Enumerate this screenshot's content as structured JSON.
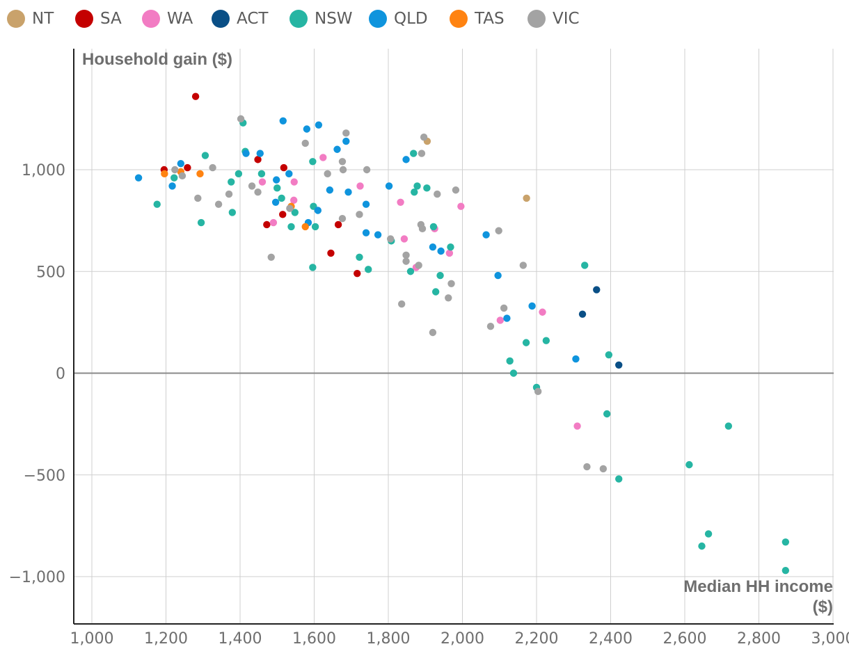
{
  "legend": [
    {
      "label": "NT",
      "color": "#c9a26b"
    },
    {
      "label": "SA",
      "color": "#c40000"
    },
    {
      "label": "WA",
      "color": "#f27cc3"
    },
    {
      "label": "ACT",
      "color": "#0a4f86"
    },
    {
      "label": "NSW",
      "color": "#26b5a3"
    },
    {
      "label": "QLD",
      "color": "#0f94dd"
    },
    {
      "label": "TAS",
      "color": "#ff8311"
    },
    {
      "label": "VIC",
      "color": "#a3a3a3"
    }
  ],
  "chart_data": {
    "type": "scatter",
    "ylabel": "Household gain ($)",
    "xlabel": "Median HH income",
    "xlabel_unit": "($)",
    "xlim": [
      950,
      3000
    ],
    "ylim": [
      -1230,
      1600
    ],
    "xticks": [
      1000,
      1200,
      1400,
      1600,
      1800,
      2000,
      2200,
      2400,
      2600,
      2800,
      3000
    ],
    "xtick_labels": [
      "1,000",
      "1,200",
      "1,400",
      "1,600",
      "1,800",
      "2,000",
      "2,200",
      "2,400",
      "2,600",
      "2,800",
      "3,000"
    ],
    "yticks": [
      1000,
      500,
      0,
      -500,
      -1000
    ],
    "ytick_labels": [
      "1,000",
      "500",
      "0",
      "−500",
      "−1,000"
    ],
    "grid": true,
    "legend_position": "top",
    "series": [
      {
        "name": "NT",
        "color": "#c9a26b",
        "x": [
          1905,
          2173
        ],
        "y": [
          1140,
          860
        ]
      },
      {
        "name": "SA",
        "color": "#c40000",
        "x": [
          1280,
          1195,
          1258,
          1448,
          1518,
          1472,
          1515,
          1665,
          1645,
          1716
        ],
        "y": [
          1360,
          1000,
          1010,
          1050,
          1010,
          730,
          780,
          730,
          590,
          490
        ]
      },
      {
        "name": "WA",
        "color": "#f27cc3",
        "x": [
          1624,
          1724,
          1460,
          1546,
          1490,
          1545,
          1833,
          1996,
          1925,
          1843,
          1875,
          1965,
          2102,
          2216,
          2310
        ],
        "y": [
          1060,
          920,
          940,
          940,
          740,
          850,
          840,
          820,
          710,
          660,
          520,
          590,
          260,
          300,
          -260
        ]
      },
      {
        "name": "ACT",
        "color": "#0a4f86",
        "x": [
          2362,
          2324,
          2422
        ],
        "y": [
          410,
          290,
          40
        ]
      },
      {
        "name": "NSW",
        "color": "#26b5a3",
        "x": [
          1176,
          1222,
          1295,
          1306,
          1376,
          1379,
          1396,
          1408,
          1414,
          1458,
          1500,
          1512,
          1538,
          1548,
          1596,
          1598,
          1603,
          1596,
          1722,
          1746,
          1808,
          1860,
          1870,
          1868,
          1878,
          1904,
          1922,
          1928,
          1940,
          1968,
          2128,
          2138,
          2172,
          2200,
          2226,
          2330,
          2390,
          2395,
          2422,
          2612,
          2646,
          2664,
          2718,
          2872,
          2872
        ],
        "y": [
          830,
          960,
          740,
          1070,
          940,
          790,
          980,
          1230,
          1090,
          980,
          910,
          860,
          720,
          790,
          1040,
          820,
          720,
          520,
          570,
          510,
          650,
          500,
          890,
          1080,
          920,
          910,
          720,
          400,
          480,
          620,
          60,
          0,
          150,
          -70,
          160,
          530,
          -200,
          90,
          -520,
          -450,
          -850,
          -790,
          -260,
          -830,
          -970
        ]
      },
      {
        "name": "QLD",
        "color": "#0f94dd",
        "x": [
          1126,
          1217,
          1240,
          1416,
          1454,
          1498,
          1496,
          1532,
          1580,
          1612,
          1610,
          1662,
          1686,
          1692,
          1642,
          1516,
          1584,
          1740,
          1740,
          1772,
          1802,
          1848,
          1920,
          1942,
          2064,
          2096,
          2120,
          2188,
          2306
        ],
        "y": [
          960,
          920,
          1030,
          1080,
          1080,
          950,
          840,
          980,
          1200,
          1220,
          800,
          1100,
          1140,
          890,
          900,
          1240,
          740,
          830,
          690,
          680,
          920,
          1050,
          620,
          600,
          680,
          480,
          270,
          330,
          70
        ]
      },
      {
        "name": "TAS",
        "color": "#ff8311",
        "x": [
          1196,
          1240,
          1292,
          1538,
          1576
        ],
        "y": [
          980,
          990,
          980,
          820,
          720
        ]
      },
      {
        "name": "VIC",
        "color": "#a3a3a3",
        "x": [
          1224,
          1244,
          1286,
          1326,
          1342,
          1370,
          1402,
          1432,
          1448,
          1484,
          1534,
          1576,
          1636,
          1676,
          1678,
          1686,
          1742,
          1722,
          1676,
          1836,
          1848,
          1882,
          1888,
          1892,
          1896,
          1932,
          1962,
          1970,
          1982,
          1920,
          1848,
          1806,
          1890,
          2076,
          2098,
          2112,
          2164,
          2204,
          2336,
          2380
        ],
        "y": [
          1000,
          970,
          860,
          1010,
          830,
          880,
          1250,
          920,
          890,
          570,
          810,
          1130,
          980,
          1040,
          1000,
          1180,
          1000,
          780,
          760,
          340,
          580,
          530,
          730,
          710,
          1160,
          880,
          370,
          440,
          900,
          200,
          550,
          660,
          1080,
          230,
          700,
          320,
          530,
          -90,
          -460,
          -470
        ]
      }
    ]
  }
}
